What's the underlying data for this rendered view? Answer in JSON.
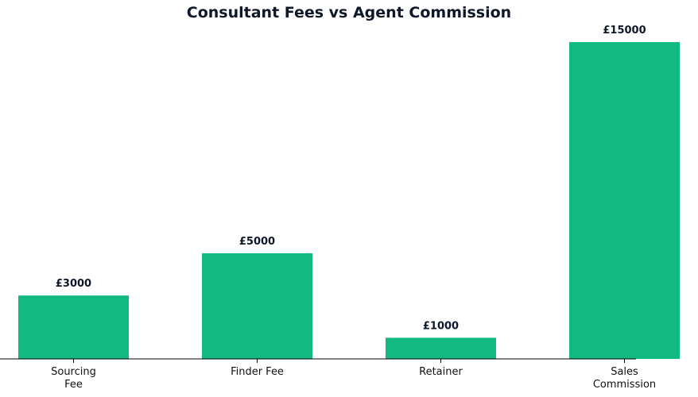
{
  "chart_data": {
    "type": "bar",
    "title": "Consultant Fees vs Agent Commission",
    "xlabel": "",
    "ylabel": "",
    "categories": [
      [
        "Sourcing",
        "Fee"
      ],
      [
        "Finder Fee"
      ],
      [
        "Retainer"
      ],
      [
        "Sales",
        "Commission"
      ]
    ],
    "values": [
      3000,
      5000,
      1000,
      15000
    ],
    "value_labels": [
      "£3000",
      "£5000",
      "£1000",
      "£15000"
    ],
    "ylim": [
      0,
      15000
    ],
    "grid": false,
    "legend": "none",
    "bar_color": "#12b981"
  }
}
